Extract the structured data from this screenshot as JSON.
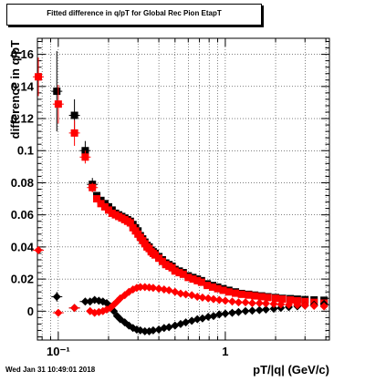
{
  "chart_data": {
    "type": "scatter",
    "title": "Fitted difference in q/pT for Global Rec Pion EtapT",
    "xlabel": "pT/|q| (GeV/c)",
    "ylabel": "difference in q/pT",
    "xscale": "log",
    "xlim": [
      0.075,
      4.2
    ],
    "ylim": [
      -0.018,
      0.17
    ],
    "x_ticks": [
      {
        "value": 0.1,
        "label": "10⁻¹"
      },
      {
        "value": 1,
        "label": "1"
      }
    ],
    "y_ticks": [
      {
        "value": 0,
        "label": "0"
      },
      {
        "value": 0.02,
        "label": "0.02"
      },
      {
        "value": 0.04,
        "label": "0.04"
      },
      {
        "value": 0.06,
        "label": "0.06"
      },
      {
        "value": 0.08,
        "label": "0.08"
      },
      {
        "value": 0.1,
        "label": "0.1"
      },
      {
        "value": 0.12,
        "label": "0.12"
      },
      {
        "value": 0.14,
        "label": "0.14"
      },
      {
        "value": 0.16,
        "label": "0.16"
      }
    ],
    "grid": true,
    "series": [
      {
        "color": "#000000",
        "marker": "square",
        "points": [
          [
            0.098,
            0.137,
            0.025
          ],
          [
            0.125,
            0.122,
            0.01
          ],
          [
            0.145,
            0.1,
            0.006
          ],
          [
            0.16,
            0.079,
            0.004
          ]
        ]
      },
      {
        "color": "#ff0000",
        "marker": "square",
        "points": [
          [
            0.076,
            0.146,
            0.012
          ],
          [
            0.1,
            0.129,
            0.012
          ],
          [
            0.125,
            0.111,
            0.008
          ],
          [
            0.145,
            0.096,
            0.004
          ],
          [
            0.16,
            0.077,
            0.003
          ]
        ]
      },
      {
        "color": "#000000",
        "marker": "diamond",
        "points": [
          [
            0.098,
            0.009,
            0.003
          ],
          [
            0.125,
            0.002,
            0.002
          ],
          [
            0.145,
            0.006,
            0.001
          ]
        ]
      },
      {
        "color": "#ff0000",
        "marker": "diamond",
        "points": [
          [
            0.076,
            0.038,
            0.002
          ],
          [
            0.1,
            -0.001,
            0.001
          ],
          [
            0.125,
            0.002,
            0.001
          ]
        ]
      },
      {
        "color": "#000000",
        "marker": "square",
        "points": [
          [
            0.17,
            0.072
          ],
          [
            0.18,
            0.069
          ],
          [
            0.19,
            0.067
          ],
          [
            0.2,
            0.065
          ],
          [
            0.21,
            0.063
          ],
          [
            0.22,
            0.061
          ],
          [
            0.23,
            0.06
          ],
          [
            0.24,
            0.059
          ],
          [
            0.25,
            0.058
          ],
          [
            0.26,
            0.057
          ],
          [
            0.27,
            0.056
          ],
          [
            0.28,
            0.054
          ],
          [
            0.29,
            0.052
          ],
          [
            0.3,
            0.05
          ],
          [
            0.31,
            0.047
          ],
          [
            0.32,
            0.045
          ],
          [
            0.33,
            0.043
          ],
          [
            0.34,
            0.041
          ],
          [
            0.35,
            0.04
          ],
          [
            0.36,
            0.038
          ],
          [
            0.37,
            0.037
          ],
          [
            0.38,
            0.036
          ],
          [
            0.4,
            0.034
          ],
          [
            0.42,
            0.032
          ],
          [
            0.44,
            0.03
          ],
          [
            0.46,
            0.029
          ],
          [
            0.48,
            0.028
          ],
          [
            0.5,
            0.026
          ],
          [
            0.53,
            0.025
          ],
          [
            0.56,
            0.024
          ],
          [
            0.6,
            0.022
          ],
          [
            0.64,
            0.021
          ],
          [
            0.68,
            0.02
          ],
          [
            0.72,
            0.019
          ],
          [
            0.78,
            0.017
          ],
          [
            0.84,
            0.016
          ],
          [
            0.9,
            0.015
          ],
          [
            0.97,
            0.014
          ],
          [
            1.05,
            0.013
          ],
          [
            1.15,
            0.012
          ],
          [
            1.25,
            0.011
          ],
          [
            1.38,
            0.0105
          ],
          [
            1.5,
            0.01
          ],
          [
            1.65,
            0.0095
          ],
          [
            1.8,
            0.009
          ],
          [
            2.0,
            0.0085
          ],
          [
            2.2,
            0.008
          ],
          [
            2.45,
            0.0078
          ],
          [
            2.7,
            0.0075
          ],
          [
            3.0,
            0.0072
          ],
          [
            3.4,
            0.007
          ],
          [
            3.9,
            0.0068
          ]
        ]
      },
      {
        "color": "#ff0000",
        "marker": "square",
        "points": [
          [
            0.17,
            0.07
          ],
          [
            0.18,
            0.067
          ],
          [
            0.19,
            0.065
          ],
          [
            0.2,
            0.063
          ],
          [
            0.21,
            0.061
          ],
          [
            0.22,
            0.06
          ],
          [
            0.23,
            0.059
          ],
          [
            0.24,
            0.058
          ],
          [
            0.25,
            0.057
          ],
          [
            0.26,
            0.056
          ],
          [
            0.27,
            0.055
          ],
          [
            0.28,
            0.052
          ],
          [
            0.29,
            0.05
          ],
          [
            0.3,
            0.048
          ],
          [
            0.31,
            0.046
          ],
          [
            0.32,
            0.044
          ],
          [
            0.33,
            0.042
          ],
          [
            0.34,
            0.04
          ],
          [
            0.35,
            0.039
          ],
          [
            0.36,
            0.037
          ],
          [
            0.37,
            0.036
          ],
          [
            0.38,
            0.035
          ],
          [
            0.4,
            0.033
          ],
          [
            0.42,
            0.031
          ],
          [
            0.44,
            0.029
          ],
          [
            0.46,
            0.028
          ],
          [
            0.48,
            0.027
          ],
          [
            0.5,
            0.025
          ],
          [
            0.53,
            0.024
          ],
          [
            0.56,
            0.023
          ],
          [
            0.6,
            0.021
          ],
          [
            0.64,
            0.02
          ],
          [
            0.68,
            0.019
          ],
          [
            0.72,
            0.018
          ],
          [
            0.78,
            0.016
          ],
          [
            0.84,
            0.015
          ],
          [
            0.9,
            0.014
          ],
          [
            0.97,
            0.013
          ],
          [
            1.05,
            0.012
          ],
          [
            1.15,
            0.0112
          ],
          [
            1.25,
            0.0105
          ],
          [
            1.38,
            0.01
          ],
          [
            1.5,
            0.0095
          ],
          [
            1.65,
            0.009
          ],
          [
            1.8,
            0.0085
          ],
          [
            2.0,
            0.008
          ],
          [
            2.2,
            0.0075
          ],
          [
            2.45,
            0.007
          ],
          [
            2.7,
            0.0065
          ],
          [
            3.0,
            0.006
          ],
          [
            3.4,
            0.0055
          ],
          [
            3.9,
            0.005
          ]
        ]
      },
      {
        "color": "#000000",
        "marker": "diamond",
        "points": [
          [
            0.155,
            0.006
          ],
          [
            0.165,
            0.007
          ],
          [
            0.175,
            0.0065
          ],
          [
            0.185,
            0.006
          ],
          [
            0.195,
            0.005
          ],
          [
            0.205,
            0.003
          ],
          [
            0.215,
            0.0
          ],
          [
            0.225,
            -0.003
          ],
          [
            0.235,
            -0.005
          ],
          [
            0.25,
            -0.007
          ],
          [
            0.265,
            -0.009
          ],
          [
            0.28,
            -0.0105
          ],
          [
            0.295,
            -0.0115
          ],
          [
            0.31,
            -0.012
          ],
          [
            0.33,
            -0.0125
          ],
          [
            0.35,
            -0.0125
          ],
          [
            0.37,
            -0.012
          ],
          [
            0.4,
            -0.0115
          ],
          [
            0.43,
            -0.0105
          ],
          [
            0.46,
            -0.01
          ],
          [
            0.5,
            -0.009
          ],
          [
            0.54,
            -0.008
          ],
          [
            0.58,
            -0.007
          ],
          [
            0.63,
            -0.006
          ],
          [
            0.68,
            -0.005
          ],
          [
            0.73,
            -0.0045
          ],
          [
            0.79,
            -0.0035
          ],
          [
            0.85,
            -0.003
          ],
          [
            0.92,
            -0.002
          ],
          [
            1.0,
            -0.0015
          ],
          [
            1.1,
            -0.001
          ],
          [
            1.2,
            -0.0005
          ],
          [
            1.32,
            0.0
          ],
          [
            1.45,
            0.0003
          ],
          [
            1.6,
            0.0007
          ],
          [
            1.75,
            0.001
          ],
          [
            1.95,
            0.0015
          ],
          [
            2.15,
            0.002
          ],
          [
            2.4,
            0.0025
          ],
          [
            2.7,
            0.003
          ],
          [
            3.0,
            0.0035
          ],
          [
            3.4,
            0.004
          ],
          [
            3.9,
            0.0045
          ]
        ]
      },
      {
        "color": "#ff0000",
        "marker": "diamond",
        "points": [
          [
            0.155,
            0.0
          ],
          [
            0.165,
            -0.001
          ],
          [
            0.175,
            -0.0005
          ],
          [
            0.185,
            0.0
          ],
          [
            0.195,
            0.001
          ],
          [
            0.205,
            0.002
          ],
          [
            0.215,
            0.004
          ],
          [
            0.225,
            0.006
          ],
          [
            0.235,
            0.008
          ],
          [
            0.25,
            0.01
          ],
          [
            0.265,
            0.012
          ],
          [
            0.28,
            0.0135
          ],
          [
            0.295,
            0.0145
          ],
          [
            0.31,
            0.015
          ],
          [
            0.33,
            0.015
          ],
          [
            0.35,
            0.0148
          ],
          [
            0.37,
            0.0145
          ],
          [
            0.4,
            0.014
          ],
          [
            0.43,
            0.0135
          ],
          [
            0.46,
            0.013
          ],
          [
            0.5,
            0.012
          ],
          [
            0.54,
            0.011
          ],
          [
            0.58,
            0.0105
          ],
          [
            0.63,
            0.01
          ],
          [
            0.68,
            0.009
          ],
          [
            0.73,
            0.0085
          ],
          [
            0.79,
            0.008
          ],
          [
            0.85,
            0.0075
          ],
          [
            0.92,
            0.007
          ],
          [
            1.0,
            0.0065
          ],
          [
            1.1,
            0.006
          ],
          [
            1.2,
            0.0055
          ],
          [
            1.32,
            0.0055
          ],
          [
            1.45,
            0.005
          ],
          [
            1.6,
            0.005
          ],
          [
            1.75,
            0.0048
          ],
          [
            1.95,
            0.0045
          ],
          [
            2.15,
            0.0042
          ],
          [
            2.4,
            0.004
          ],
          [
            2.7,
            0.0038
          ],
          [
            3.0,
            0.0035
          ],
          [
            3.4,
            0.0033
          ],
          [
            3.9,
            0.003
          ]
        ]
      }
    ]
  },
  "footer": {
    "timestamp": "Wed Jan 31 10:49:01 2018"
  }
}
